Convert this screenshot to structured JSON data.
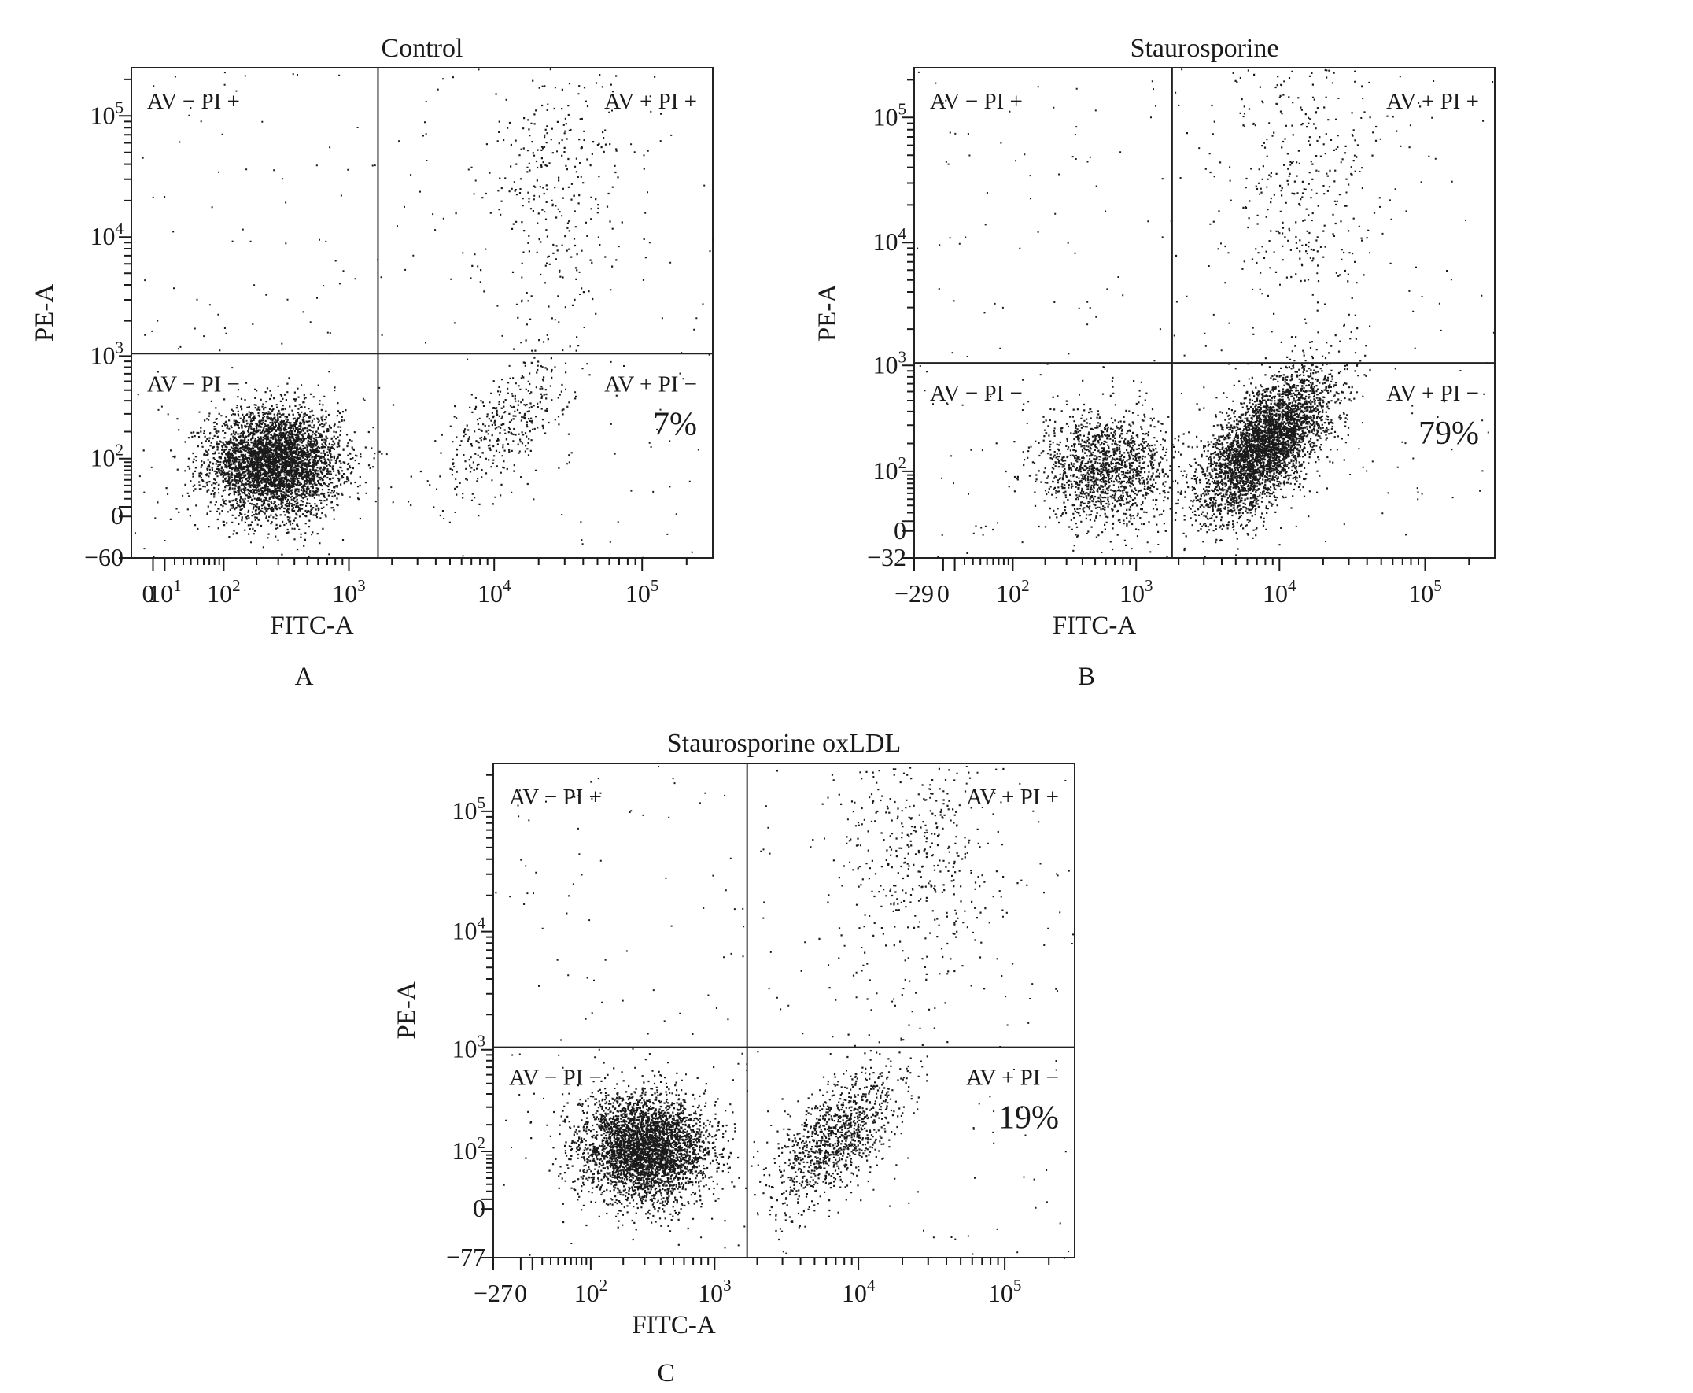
{
  "colors": {
    "ink": "#1a1a1a",
    "frame": "#222222",
    "background": "#ffffff"
  },
  "chart_data": [
    {
      "type": "scatter",
      "panel_label": "A",
      "title": "Control",
      "xlabel": "FITC-A",
      "ylabel": "PE-A",
      "scale": "biexponential (log decades)",
      "xlim": [
        -20,
        300000
      ],
      "ylim": [
        -60,
        250000
      ],
      "x_ticks": [
        {
          "value": 0,
          "base": "0",
          "exp": ""
        },
        {
          "value": 10,
          "base": "10",
          "exp": "1"
        },
        {
          "value": 100,
          "base": "10",
          "exp": "2"
        },
        {
          "value": 1000,
          "base": "10",
          "exp": "3"
        },
        {
          "value": 10000,
          "base": "10",
          "exp": "4"
        },
        {
          "value": 100000,
          "base": "10",
          "exp": "5"
        }
      ],
      "y_ticks": [
        {
          "value": -60,
          "base": "−60",
          "exp": ""
        },
        {
          "value": 0,
          "base": "0",
          "exp": ""
        },
        {
          "value": 100,
          "base": "10",
          "exp": "2"
        },
        {
          "value": 1000,
          "base": "10",
          "exp": "3"
        },
        {
          "value": 10000,
          "base": "10",
          "exp": "4"
        },
        {
          "value": 100000,
          "base": "10",
          "exp": "5"
        }
      ],
      "gate": {
        "x": 1600,
        "y": 1050
      },
      "quadrants": {
        "top_left": "AV − PI +",
        "top_right": "AV + PI +",
        "bottom_left": "AV − PI −",
        "bottom_right": "AV + PI −"
      },
      "annotation": "7%",
      "populations": [
        {
          "name": "AV−PI−",
          "x_center": 280,
          "y_center": 90,
          "n": 4200
        },
        {
          "name": "AV+PI−",
          "x_center": 12000,
          "y_center": 250,
          "n": 380
        },
        {
          "name": "AV+PI+",
          "x_center": 25000,
          "y_center": 30000,
          "n": 320
        }
      ]
    },
    {
      "type": "scatter",
      "panel_label": "B",
      "title": "Staurosporine",
      "xlabel": "FITC-A",
      "ylabel": "PE-A",
      "scale": "biexponential (log decades)",
      "xlim": [
        -29,
        300000
      ],
      "ylim": [
        -32,
        250000
      ],
      "x_ticks": [
        {
          "value": -29,
          "base": "−29",
          "exp": ""
        },
        {
          "value": 0,
          "base": "0",
          "exp": ""
        },
        {
          "value": 100,
          "base": "10",
          "exp": "2"
        },
        {
          "value": 1000,
          "base": "10",
          "exp": "3"
        },
        {
          "value": 10000,
          "base": "10",
          "exp": "4"
        },
        {
          "value": 100000,
          "base": "10",
          "exp": "5"
        }
      ],
      "y_ticks": [
        {
          "value": -32,
          "base": "−32",
          "exp": ""
        },
        {
          "value": 0,
          "base": "0",
          "exp": ""
        },
        {
          "value": 100,
          "base": "10",
          "exp": "2"
        },
        {
          "value": 1000,
          "base": "10",
          "exp": "3"
        },
        {
          "value": 10000,
          "base": "10",
          "exp": "4"
        },
        {
          "value": 100000,
          "base": "10",
          "exp": "5"
        }
      ],
      "gate": {
        "x": 1800,
        "y": 1050
      },
      "quadrants": {
        "top_left": "AV − PI +",
        "top_right": "AV + PI +",
        "bottom_left": "AV − PI −",
        "bottom_right": "AV + PI −"
      },
      "annotation": "79%",
      "populations": [
        {
          "name": "AV−PI−",
          "x_center": 600,
          "y_center": 110,
          "n": 1500
        },
        {
          "name": "AV+PI−",
          "x_center": 8000,
          "y_center": 200,
          "n": 4000
        },
        {
          "name": "AV+PI+",
          "x_center": 15000,
          "y_center": 30000,
          "n": 350
        }
      ]
    },
    {
      "type": "scatter",
      "panel_label": "C",
      "title": "Staurosporine oxLDL",
      "xlabel": "FITC-A",
      "ylabel": "PE-A",
      "scale": "biexponential (log decades)",
      "xlim": [
        -27,
        300000
      ],
      "ylim": [
        -77,
        250000
      ],
      "x_ticks": [
        {
          "value": -27,
          "base": "−27",
          "exp": ""
        },
        {
          "value": 0,
          "base": "0",
          "exp": ""
        },
        {
          "value": 100,
          "base": "10",
          "exp": "2"
        },
        {
          "value": 1000,
          "base": "10",
          "exp": "3"
        },
        {
          "value": 10000,
          "base": "10",
          "exp": "4"
        },
        {
          "value": 100000,
          "base": "10",
          "exp": "5"
        }
      ],
      "y_ticks": [
        {
          "value": -77,
          "base": "−77",
          "exp": ""
        },
        {
          "value": 0,
          "base": "0",
          "exp": ""
        },
        {
          "value": 100,
          "base": "10",
          "exp": "2"
        },
        {
          "value": 1000,
          "base": "10",
          "exp": "3"
        },
        {
          "value": 10000,
          "base": "10",
          "exp": "4"
        },
        {
          "value": 100000,
          "base": "10",
          "exp": "5"
        }
      ],
      "gate": {
        "x": 1700,
        "y": 1050
      },
      "quadrants": {
        "top_left": "AV − PI +",
        "top_right": "AV + PI +",
        "bottom_left": "AV − PI −",
        "bottom_right": "AV + PI −"
      },
      "annotation": "19%",
      "populations": [
        {
          "name": "AV−PI−",
          "x_center": 300,
          "y_center": 110,
          "n": 3800
        },
        {
          "name": "AV+PI−",
          "x_center": 7000,
          "y_center": 150,
          "n": 1100
        },
        {
          "name": "AV+PI+",
          "x_center": 25000,
          "y_center": 40000,
          "n": 450
        }
      ]
    }
  ]
}
